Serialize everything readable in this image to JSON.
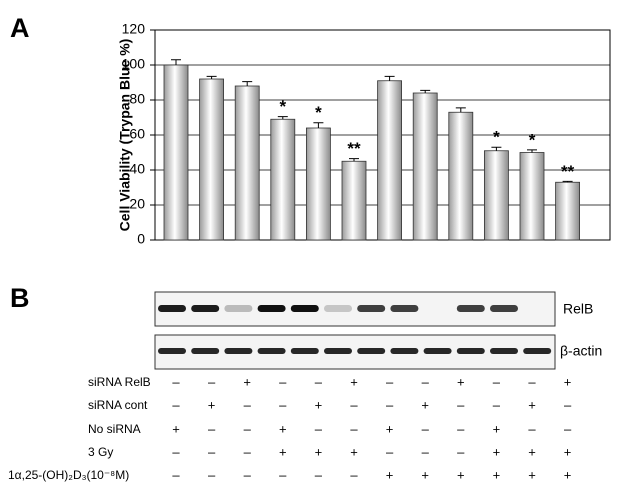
{
  "panel_labels": [
    "A",
    "B"
  ],
  "chart_data": {
    "type": "bar",
    "ylabel": "Cell Viability (Trypan Blue %)",
    "values": [
      100,
      92,
      88,
      69,
      64,
      45,
      91,
      84,
      73,
      51,
      50,
      33
    ],
    "errors": [
      3,
      1.5,
      2.5,
      1.5,
      3,
      1.5,
      2.5,
      1.5,
      2.5,
      2,
      1.5,
      0.5
    ],
    "significance": [
      null,
      null,
      null,
      "*",
      "*",
      "**",
      null,
      null,
      null,
      "*",
      "*",
      "**"
    ],
    "color": "#c8c8c8",
    "ylim": [
      0,
      120
    ],
    "yticks": [
      0,
      20,
      40,
      60,
      80,
      100,
      120
    ],
    "grid": true
  },
  "blot": {
    "labels": [
      "RelB",
      "β-actin"
    ]
  },
  "treatments": {
    "rows": [
      {
        "label": "siRNA RelB",
        "signs": [
          "–",
          "–",
          "+",
          "–",
          "–",
          "+",
          "–",
          "–",
          "+",
          "–",
          "–",
          "+"
        ]
      },
      {
        "label": "siRNA cont",
        "signs": [
          "–",
          "+",
          "–",
          "–",
          "+",
          "–",
          "–",
          "+",
          "–",
          "–",
          "+",
          "–"
        ]
      },
      {
        "label": "No siRNA",
        "signs": [
          "+",
          "–",
          "–",
          "+",
          "–",
          "–",
          "+",
          "–",
          "–",
          "+",
          "–",
          "–"
        ]
      },
      {
        "label": "3 Gy",
        "signs": [
          "–",
          "–",
          "–",
          "+",
          "+",
          "+",
          "–",
          "–",
          "–",
          "+",
          "+",
          "+"
        ]
      },
      {
        "label": "1α,25-(OH)₂D₃(10⁻⁸M)",
        "signs": [
          "–",
          "–",
          "–",
          "–",
          "–",
          "–",
          "+",
          "+",
          "+",
          "+",
          "+",
          "+"
        ]
      }
    ]
  }
}
